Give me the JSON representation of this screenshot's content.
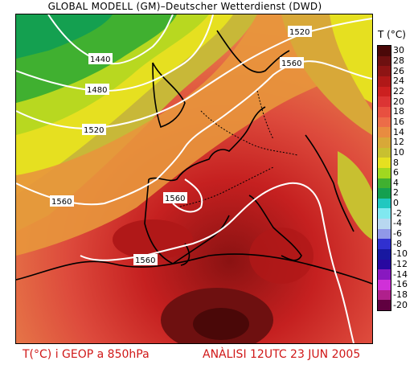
{
  "header": {
    "title": "GLOBAL MODELL (GM)–Deutscher Wetterdienst (DWD)"
  },
  "footer": {
    "variable": "T(°C) i GEOP a 850hPa",
    "analysis": "ANÀLISI 12UTC 23 JUN 2005"
  },
  "legend": {
    "title": "T (°C)",
    "ticks": [
      "30",
      "28",
      "26",
      "24",
      "22",
      "20",
      "18",
      "16",
      "14",
      "12",
      "10",
      "8",
      "6",
      "4",
      "2",
      "0",
      "-2",
      "-4",
      "-6",
      "-8",
      "-10",
      "-12",
      "-14",
      "-16",
      "-18",
      "-20"
    ],
    "colors": [
      "#4a0808",
      "#6e1010",
      "#8e1414",
      "#b01818",
      "#cc2020",
      "#dc3434",
      "#e85040",
      "#ec6c48",
      "#e88c40",
      "#d8a838",
      "#c8c030",
      "#e6e020",
      "#a0d820",
      "#40b030",
      "#14a050",
      "#20c8c0",
      "#80e8f0",
      "#b8d8f0",
      "#9098e8",
      "#3030d0",
      "#1818a0",
      "#2808a0",
      "#8818c0",
      "#d030d8",
      "#b0208c",
      "#600040"
    ]
  },
  "geopotential_contours": [
    {
      "id": "1440",
      "label": "1440"
    },
    {
      "id": "1480",
      "label": "1480"
    },
    {
      "id": "1520_w",
      "label": "1520"
    },
    {
      "id": "1520_ne",
      "label": "1520"
    },
    {
      "id": "1560_n",
      "label": "1560"
    },
    {
      "id": "1560_w",
      "label": "1560"
    },
    {
      "id": "1560_c",
      "label": "1560"
    },
    {
      "id": "1560_s",
      "label": "1560"
    }
  ]
}
